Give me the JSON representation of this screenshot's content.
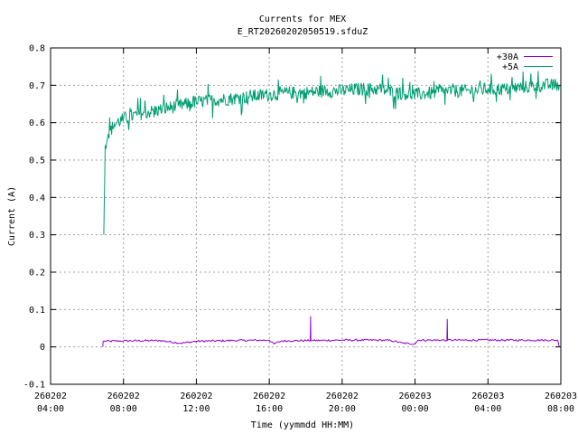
{
  "chart_data": {
    "type": "line",
    "title": "Currents for MEX",
    "subtitle": "E_RT20260202050519.sfduZ",
    "xlabel": "Time (yymmdd HH:MM)",
    "ylabel": "Current (A)",
    "xlim": [
      "2026-02-02 04:00",
      "2026-02-03 08:00"
    ],
    "ylim": [
      -0.1,
      0.8
    ],
    "grid": true,
    "legend_position": "top-right",
    "x_ticks": [
      {
        "date": "260202",
        "time": "04:00"
      },
      {
        "date": "260202",
        "time": "08:00"
      },
      {
        "date": "260202",
        "time": "12:00"
      },
      {
        "date": "260202",
        "time": "16:00"
      },
      {
        "date": "260202",
        "time": "20:00"
      },
      {
        "date": "260203",
        "time": "00:00"
      },
      {
        "date": "260203",
        "time": "04:00"
      },
      {
        "date": "260203",
        "time": "08:00"
      }
    ],
    "y_ticks": [
      "-0.1",
      "0",
      "0.1",
      "0.2",
      "0.3",
      "0.4",
      "0.5",
      "0.6",
      "0.7",
      "0.8"
    ],
    "series": [
      {
        "name": "+30A",
        "color": "#9400d3",
        "x": [
          "2026-02-02 06:52",
          "2026-02-02 06:53",
          "2026-02-02 08:00",
          "2026-02-02 10:00",
          "2026-02-02 11:10",
          "2026-02-02 12:00",
          "2026-02-02 14:00",
          "2026-02-02 16:00",
          "2026-02-02 16:15",
          "2026-02-02 16:40",
          "2026-02-02 18:00",
          "2026-02-02 18:15",
          "2026-02-02 18:16",
          "2026-02-02 18:17",
          "2026-02-02 20:00",
          "2026-02-02 22:00",
          "2026-02-02 22:40",
          "2026-02-02 23:20",
          "2026-02-03 00:00",
          "2026-02-03 00:10",
          "2026-02-03 01:00",
          "2026-02-03 01:45",
          "2026-02-03 01:46",
          "2026-02-03 01:47",
          "2026-02-03 03:00",
          "2026-02-03 05:00",
          "2026-02-03 07:00",
          "2026-02-03 07:50",
          "2026-02-03 07:55"
        ],
        "values": [
          0.0,
          0.015,
          0.016,
          0.017,
          0.01,
          0.015,
          0.017,
          0.018,
          0.008,
          0.016,
          0.017,
          0.017,
          0.082,
          0.017,
          0.018,
          0.018,
          0.017,
          0.01,
          0.008,
          0.018,
          0.018,
          0.018,
          0.075,
          0.018,
          0.018,
          0.018,
          0.018,
          0.018,
          0.0
        ]
      },
      {
        "name": "+5A",
        "color": "#009e73",
        "x": [
          "2026-02-02 06:55",
          "2026-02-02 07:00",
          "2026-02-02 07:10",
          "2026-02-02 07:30",
          "2026-02-02 08:00",
          "2026-02-02 09:00",
          "2026-02-02 10:00",
          "2026-02-02 11:00",
          "2026-02-02 12:00",
          "2026-02-02 13:00",
          "2026-02-02 14:00",
          "2026-02-02 15:00",
          "2026-02-02 16:00",
          "2026-02-02 17:00",
          "2026-02-02 18:00",
          "2026-02-02 19:00",
          "2026-02-02 20:00",
          "2026-02-02 21:00",
          "2026-02-02 22:00",
          "2026-02-02 23:00",
          "2026-02-03 00:00",
          "2026-02-03 01:00",
          "2026-02-03 02:00",
          "2026-02-03 03:00",
          "2026-02-03 04:00",
          "2026-02-03 05:00",
          "2026-02-03 06:00",
          "2026-02-03 07:00",
          "2026-02-03 07:55"
        ],
        "values": [
          0.3,
          0.54,
          0.57,
          0.595,
          0.61,
          0.625,
          0.635,
          0.645,
          0.655,
          0.66,
          0.665,
          0.67,
          0.675,
          0.68,
          0.68,
          0.685,
          0.685,
          0.69,
          0.69,
          0.68,
          0.675,
          0.68,
          0.685,
          0.685,
          0.69,
          0.69,
          0.695,
          0.7,
          0.7
        ]
      }
    ]
  }
}
